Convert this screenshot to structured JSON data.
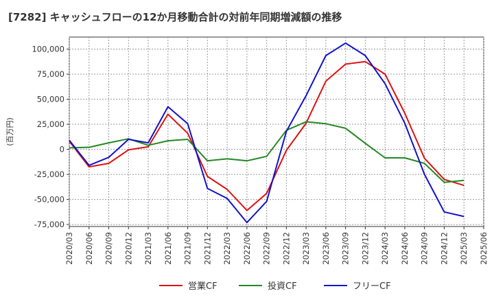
{
  "title": "[7282]  キャッシュフローの12か月移動合計の対前年同期増減額の推移",
  "chart_data": {
    "type": "line",
    "title": "[7282]  キャッシュフローの12か月移動合計の対前年同期増減額の推移",
    "xlabel": "",
    "ylabel": "(百万円)",
    "ylim": [
      -77000,
      112000
    ],
    "yticks": [
      100000,
      75000,
      50000,
      25000,
      0,
      -25000,
      -50000,
      -75000
    ],
    "ytick_labels": [
      "100,000",
      "75,000",
      "50,000",
      "25,000",
      "0",
      "-25,000",
      "-50,000",
      "-75,000"
    ],
    "x": [
      "2020/03",
      "2020/06",
      "2020/09",
      "2020/12",
      "2021/03",
      "2021/06",
      "2021/09",
      "2021/12",
      "2022/03",
      "2022/06",
      "2022/09",
      "2022/12",
      "2023/03",
      "2023/06",
      "2023/09",
      "2023/12",
      "2024/03",
      "2024/06",
      "2024/09",
      "2024/12",
      "2025/03",
      "2025/06"
    ],
    "grid": true,
    "legend": "bottom",
    "series": [
      {
        "name": "営業CF",
        "color": "#dd1111",
        "values": [
          8000,
          -17500,
          -14000,
          -500,
          2500,
          35000,
          16000,
          -27000,
          -40000,
          -61000,
          -44000,
          -1000,
          26000,
          68000,
          85000,
          87500,
          75000,
          36000,
          -9000,
          -30000,
          -36000,
          null
        ]
      },
      {
        "name": "投資CF",
        "color": "#228822",
        "values": [
          1500,
          2000,
          6500,
          10500,
          4000,
          8500,
          10000,
          -11500,
          -9500,
          -11500,
          -7000,
          19000,
          27500,
          25500,
          21000,
          6000,
          -8500,
          -8500,
          -14000,
          -33000,
          -31000,
          null
        ]
      },
      {
        "name": "フリーCF",
        "color": "#1111cc",
        "values": [
          9000,
          -16000,
          -8000,
          10000,
          6500,
          42500,
          25500,
          -39000,
          -49000,
          -73000,
          -52000,
          18000,
          53500,
          93500,
          106000,
          93500,
          65500,
          26000,
          -25000,
          -62500,
          -67000,
          null
        ]
      }
    ]
  }
}
